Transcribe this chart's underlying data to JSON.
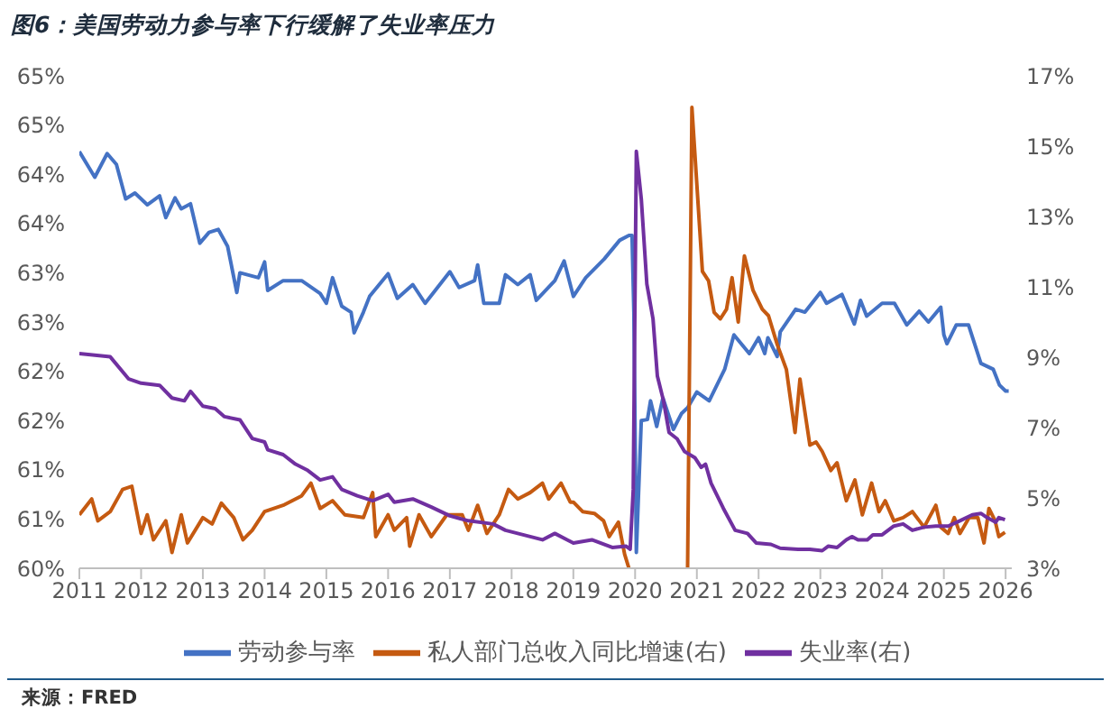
{
  "chart_data": {
    "type": "line",
    "title": "图6：美国劳动力参与率下行缓解了失业率压力",
    "annotations": [
      "来源：FRED"
    ],
    "xlim": [
      2011,
      2026.1
    ],
    "xticks": [
      2011,
      2012,
      2013,
      2014,
      2015,
      2016,
      2017,
      2018,
      2019,
      2020,
      2021,
      2022,
      2023,
      2024,
      2025,
      2026
    ],
    "ylim": [
      60,
      65
    ],
    "yticks": [
      {
        "value": 60,
        "label": "60%"
      },
      {
        "value": 60.5,
        "label": "61%"
      },
      {
        "value": 61,
        "label": "61%"
      },
      {
        "value": 61.5,
        "label": "62%"
      },
      {
        "value": 62,
        "label": "62%"
      },
      {
        "value": 62.5,
        "label": "63%"
      },
      {
        "value": 63,
        "label": "63%"
      },
      {
        "value": 63.5,
        "label": "64%"
      },
      {
        "value": 64,
        "label": "64%"
      },
      {
        "value": 64.5,
        "label": "65%"
      },
      {
        "value": 65,
        "label": "65%"
      }
    ],
    "y2lim": [
      3,
      17
    ],
    "y2ticks": [
      {
        "value": 3,
        "label": "3%"
      },
      {
        "value": 5,
        "label": "5%"
      },
      {
        "value": 7,
        "label": "7%"
      },
      {
        "value": 9,
        "label": "9%"
      },
      {
        "value": 11,
        "label": "11%"
      },
      {
        "value": 13,
        "label": "13%"
      },
      {
        "value": 15,
        "label": "15%"
      },
      {
        "value": 17,
        "label": "17%"
      }
    ],
    "grid": false,
    "legend": "bottom",
    "marker": "none",
    "line_style": "solid",
    "series": [
      {
        "name": "劳动参与率",
        "color": "#4472c4",
        "x": [
          2011.0,
          2011.25,
          2011.45,
          2011.6,
          2011.75,
          2011.9,
          2012.1,
          2012.3,
          2012.4,
          2012.55,
          2012.65,
          2012.8,
          2012.95,
          2013.1,
          2013.25,
          2013.4,
          2013.55,
          2013.6,
          2013.9,
          2014.0,
          2014.05,
          2014.3,
          2014.6,
          2014.9,
          2015.0,
          2015.1,
          2015.25,
          2015.4,
          2015.45,
          2015.6,
          2015.7,
          2016.0,
          2016.15,
          2016.4,
          2016.6,
          2016.8,
          2017.0,
          2017.15,
          2017.4,
          2017.45,
          2017.55,
          2017.8,
          2017.9,
          2018.1,
          2018.3,
          2018.4,
          2018.7,
          2018.85,
          2019.0,
          2019.2,
          2019.5,
          2019.75,
          2019.9,
          2019.95,
          2019.98,
          2020.02,
          2020.1,
          2020.2,
          2020.25,
          2020.35,
          2020.45,
          2020.55,
          2020.62,
          2020.75,
          2020.85,
          2021.0,
          2021.2,
          2021.45,
          2021.6,
          2021.85,
          2022.0,
          2022.1,
          2022.15,
          2022.3,
          2022.35,
          2022.6,
          2022.75,
          2023.0,
          2023.1,
          2023.35,
          2023.55,
          2023.65,
          2023.75,
          2024.0,
          2024.2,
          2024.4,
          2024.6,
          2024.75,
          2024.95,
          2025.0,
          2025.05,
          2025.2,
          2025.4,
          2025.6,
          2025.8,
          2025.9,
          2026.0,
          2026.05
        ],
        "values": [
          64.23,
          63.97,
          64.21,
          64.1,
          63.75,
          63.81,
          63.69,
          63.78,
          63.56,
          63.76,
          63.65,
          63.7,
          63.3,
          63.41,
          63.44,
          63.27,
          62.8,
          63.0,
          62.95,
          63.11,
          62.82,
          62.92,
          62.92,
          62.79,
          62.69,
          62.95,
          62.66,
          62.6,
          62.39,
          62.6,
          62.76,
          62.99,
          62.74,
          62.88,
          62.69,
          62.85,
          63.01,
          62.85,
          62.92,
          63.08,
          62.69,
          62.69,
          62.98,
          62.88,
          62.98,
          62.72,
          62.92,
          63.12,
          62.76,
          62.95,
          63.14,
          63.33,
          63.38,
          63.38,
          62.6,
          60.16,
          61.5,
          61.51,
          61.7,
          61.44,
          61.73,
          61.54,
          61.41,
          61.57,
          61.63,
          61.79,
          61.7,
          62.02,
          62.37,
          62.18,
          62.34,
          62.18,
          62.34,
          62.15,
          62.4,
          62.63,
          62.6,
          62.8,
          62.69,
          62.78,
          62.48,
          62.72,
          62.56,
          62.69,
          62.69,
          62.47,
          62.61,
          62.5,
          62.65,
          62.37,
          62.28,
          62.47,
          62.47,
          62.08,
          62.02,
          61.86,
          61.8,
          61.8
        ]
      },
      {
        "name": "私人部门总收入同比增速(右)",
        "color": "#c55a11",
        "axis": "y2",
        "x": [
          2011.0,
          2011.2,
          2011.3,
          2011.5,
          2011.7,
          2011.85,
          2012.0,
          2012.1,
          2012.2,
          2012.4,
          2012.5,
          2012.65,
          2012.75,
          2013.0,
          2013.15,
          2013.3,
          2013.5,
          2013.65,
          2013.8,
          2014.0,
          2014.3,
          2014.6,
          2014.75,
          2014.9,
          2015.1,
          2015.3,
          2015.6,
          2015.75,
          2015.8,
          2016.0,
          2016.1,
          2016.3,
          2016.35,
          2016.5,
          2016.7,
          2016.95,
          2017.2,
          2017.3,
          2017.45,
          2017.6,
          2017.8,
          2017.95,
          2018.1,
          2018.3,
          2018.5,
          2018.6,
          2018.8,
          2018.95,
          2019.0,
          2019.15,
          2019.34,
          2019.49,
          2019.58,
          2019.73,
          2019.83,
          2019.9,
          2020.4,
          2020.85,
          2020.92,
          2021.09,
          2021.19,
          2021.28,
          2021.38,
          2021.48,
          2021.57,
          2021.67,
          2021.77,
          2021.91,
          2022.06,
          2022.16,
          2022.3,
          2022.45,
          2022.59,
          2022.67,
          2022.83,
          2022.93,
          2023.03,
          2023.17,
          2023.27,
          2023.42,
          2023.56,
          2023.68,
          2023.83,
          2023.95,
          2024.05,
          2024.19,
          2024.34,
          2024.49,
          2024.68,
          2024.87,
          2024.95,
          2025.07,
          2025.17,
          2025.26,
          2025.41,
          2025.55,
          2025.65,
          2025.73,
          2025.83,
          2025.89,
          2025.99
        ],
        "values": [
          4.52,
          4.97,
          4.35,
          4.61,
          5.24,
          5.33,
          3.99,
          4.52,
          3.81,
          4.35,
          3.45,
          4.52,
          3.72,
          4.44,
          4.26,
          4.85,
          4.44,
          3.81,
          4.08,
          4.61,
          4.79,
          5.06,
          5.42,
          4.7,
          4.92,
          4.52,
          4.44,
          5.15,
          3.9,
          4.52,
          4.08,
          4.44,
          3.63,
          4.52,
          3.9,
          4.52,
          4.52,
          4.08,
          4.79,
          3.99,
          4.52,
          5.24,
          4.97,
          5.15,
          5.42,
          4.97,
          5.42,
          4.88,
          4.88,
          4.61,
          4.56,
          4.35,
          3.9,
          4.31,
          3.4,
          3.0,
          null,
          3.0,
          16.1,
          11.44,
          11.17,
          10.27,
          10.09,
          10.36,
          11.26,
          10.0,
          11.88,
          10.9,
          10.36,
          10.18,
          9.37,
          8.65,
          6.86,
          8.38,
          6.5,
          6.59,
          6.32,
          5.78,
          6.0,
          4.92,
          5.51,
          4.52,
          5.42,
          4.61,
          4.92,
          4.35,
          4.44,
          4.61,
          4.17,
          4.79,
          4.17,
          3.99,
          4.44,
          3.99,
          4.44,
          4.44,
          3.72,
          4.7,
          4.35,
          3.9,
          4.02
        ]
      },
      {
        "name": "失业率(右)",
        "color": "#7030a0",
        "axis": "y2",
        "x": [
          2011.0,
          2011.5,
          2011.8,
          2012.0,
          2012.3,
          2012.5,
          2012.7,
          2012.8,
          2013.0,
          2013.2,
          2013.35,
          2013.6,
          2013.8,
          2014.0,
          2014.05,
          2014.3,
          2014.5,
          2014.7,
          2014.9,
          2015.1,
          2015.25,
          2015.5,
          2015.75,
          2016.0,
          2016.1,
          2016.4,
          2016.7,
          2017.0,
          2017.3,
          2017.7,
          2017.9,
          2018.1,
          2018.5,
          2018.7,
          2018.9,
          2019.0,
          2019.3,
          2019.63,
          2019.85,
          2019.92,
          2019.97,
          2020.02,
          2020.1,
          2020.19,
          2020.29,
          2020.36,
          2020.46,
          2020.55,
          2020.68,
          2020.8,
          2020.97,
          2021.07,
          2021.14,
          2021.23,
          2021.43,
          2021.62,
          2021.82,
          2021.96,
          2022.2,
          2022.35,
          2022.64,
          2022.83,
          2023.03,
          2023.13,
          2023.27,
          2023.42,
          2023.51,
          2023.61,
          2023.76,
          2023.85,
          2024.0,
          2024.19,
          2024.34,
          2024.49,
          2024.68,
          2024.87,
          2025.07,
          2025.26,
          2025.46,
          2025.6,
          2025.7,
          2025.84,
          2025.89,
          2025.99
        ],
        "values": [
          9.1,
          9.01,
          8.38,
          8.26,
          8.2,
          7.84,
          7.76,
          8.03,
          7.61,
          7.54,
          7.31,
          7.22,
          6.69,
          6.59,
          6.37,
          6.23,
          5.96,
          5.78,
          5.51,
          5.6,
          5.24,
          5.06,
          4.92,
          5.1,
          4.88,
          4.97,
          4.74,
          4.49,
          4.35,
          4.26,
          4.08,
          3.99,
          3.81,
          3.99,
          3.81,
          3.72,
          3.81,
          3.59,
          3.63,
          3.54,
          5.24,
          14.85,
          13.5,
          11.08,
          10.09,
          8.47,
          7.76,
          6.86,
          6.68,
          6.32,
          6.14,
          5.87,
          5.96,
          5.42,
          4.7,
          4.08,
          3.99,
          3.72,
          3.68,
          3.57,
          3.54,
          3.54,
          3.5,
          3.63,
          3.59,
          3.81,
          3.9,
          3.81,
          3.81,
          3.95,
          3.95,
          4.2,
          4.26,
          4.08,
          4.17,
          4.2,
          4.2,
          4.35,
          4.52,
          4.56,
          4.44,
          4.31,
          4.44,
          4.38
        ]
      }
    ]
  }
}
